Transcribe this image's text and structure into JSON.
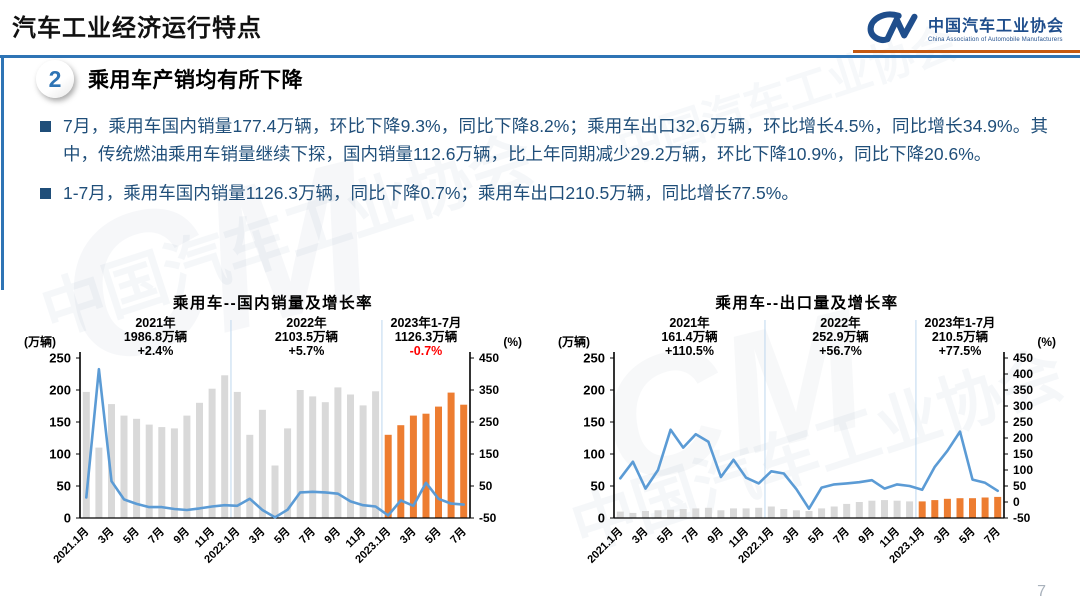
{
  "header": {
    "title": "汽车工业经济运行特点",
    "logo": {
      "mark": "CM",
      "name_cn": "中国汽车工业协会",
      "name_en": "China Association of Automobile Manufacturers"
    }
  },
  "section": {
    "number": "2",
    "title": "乘用车产销均有所下降"
  },
  "bullets": [
    "7月，乘用车国内销量177.4万辆，环比下降9.3%，同比下降8.2%；乘用车出口32.6万辆，环比增长4.5%，同比增长34.9%。其中，传统燃油乘用车销量继续下探，国内销量112.6万辆，比上年同期减少29.2万辆，环比下降10.9%，同比下降20.6%。",
    "1-7月，乘用车国内销量1126.3万辆，同比下降0.7%；乘用车出口210.5万辆，同比增长77.5%。"
  ],
  "page_number": "7",
  "colors": {
    "accent_blue": "#2E74B5",
    "text_blue": "#1F4E79",
    "logo_blue": "#1F4E8C",
    "header_orange": "#C45911",
    "bar_gray": "#D9D9D9",
    "bar_orange": "#ED7D31",
    "line_blue": "#5B9BD5",
    "annotation_red": "#FF0000",
    "separator_blue": "#BDD7EE"
  },
  "chart_data": [
    {
      "type": "bar",
      "title": "乘用车--国内销量及增长率",
      "left_axis": {
        "label": "(万辆)",
        "min": 0,
        "max": 250,
        "step": 50
      },
      "right_axis": {
        "label": "(%)",
        "min": -50,
        "max": 450,
        "step": 100
      },
      "x_tick_labels": [
        "2021.1月",
        "3月",
        "5月",
        "7月",
        "9月",
        "11月",
        "2022.1月",
        "3月",
        "5月",
        "7月",
        "9月",
        "11月",
        "2023.1月",
        "3月",
        "5月",
        "7月"
      ],
      "bars": {
        "values": [
          197,
          110,
          178,
          160,
          155,
          146,
          142,
          140,
          160,
          180,
          202,
          223,
          197,
          130,
          169,
          82,
          140,
          200,
          190,
          181,
          204,
          193,
          176,
          198,
          130,
          145,
          160,
          163,
          174,
          196,
          177
        ]
      },
      "line": {
        "values": [
          14,
          415,
          65,
          8,
          -6,
          -16,
          -16,
          -22,
          -25,
          -20,
          -14,
          -10,
          -12,
          10,
          -25,
          -48,
          -24,
          30,
          32,
          30,
          26,
          2,
          -10,
          -14,
          -42,
          5,
          -12,
          60,
          10,
          -5,
          -8
        ]
      },
      "highlight_start_index": 24,
      "year_separators_after_index": [
        11,
        23
      ],
      "annotation_groups": [
        {
          "start": 0,
          "count": 12
        },
        {
          "start": 12,
          "count": 12
        },
        {
          "start": 24,
          "count": 7
        }
      ],
      "annotations": [
        {
          "label": "2021年",
          "total": "1986.8万辆",
          "growth": "+2.4%",
          "growth_color": "#000000"
        },
        {
          "label": "2022年",
          "total": "2103.5万辆",
          "growth": "+5.7%",
          "growth_color": "#000000"
        },
        {
          "label": "2023年1-7月",
          "total": "1126.3万辆",
          "growth": "-0.7%",
          "growth_color": "#FF0000"
        }
      ]
    },
    {
      "type": "bar",
      "title": "乘用车--出口量及增长率",
      "left_axis": {
        "label": "(万辆)",
        "min": 0,
        "max": 250,
        "step": 50
      },
      "right_axis": {
        "label": "(%)",
        "min": -50,
        "max": 450,
        "step": 50
      },
      "x_tick_labels": [
        "2021.1月",
        "3月",
        "5月",
        "7月",
        "9月",
        "11月",
        "2022.1月",
        "3月",
        "5月",
        "7月",
        "9月",
        "11月",
        "2023.1月",
        "3月",
        "5月",
        "7月"
      ],
      "bars": {
        "values": [
          10,
          8,
          11,
          12,
          13,
          14,
          15,
          16,
          12,
          15,
          15,
          16,
          18,
          14,
          12,
          11,
          15,
          18,
          22,
          25,
          27,
          28,
          27,
          26,
          26,
          28,
          30,
          31,
          31,
          32,
          33
        ]
      },
      "line": {
        "values": [
          74,
          126,
          42,
          100,
          226,
          170,
          212,
          188,
          78,
          132,
          76,
          58,
          96,
          89,
          40,
          -21,
          45,
          55,
          58,
          62,
          68,
          42,
          55,
          50,
          38,
          110,
          160,
          220,
          70,
          60,
          35
        ]
      },
      "highlight_start_index": 24,
      "year_separators_after_index": [
        11,
        23
      ],
      "annotation_groups": [
        {
          "start": 0,
          "count": 12
        },
        {
          "start": 12,
          "count": 12
        },
        {
          "start": 24,
          "count": 7
        }
      ],
      "annotations": [
        {
          "label": "2021年",
          "total": "161.4万辆",
          "growth": "+110.5%",
          "growth_color": "#000000"
        },
        {
          "label": "2022年",
          "total": "252.9万辆",
          "growth": "+56.7%",
          "growth_color": "#000000"
        },
        {
          "label": "2023年1-7月",
          "total": "210.5万辆",
          "growth": "+77.5%",
          "growth_color": "#000000"
        }
      ]
    }
  ]
}
